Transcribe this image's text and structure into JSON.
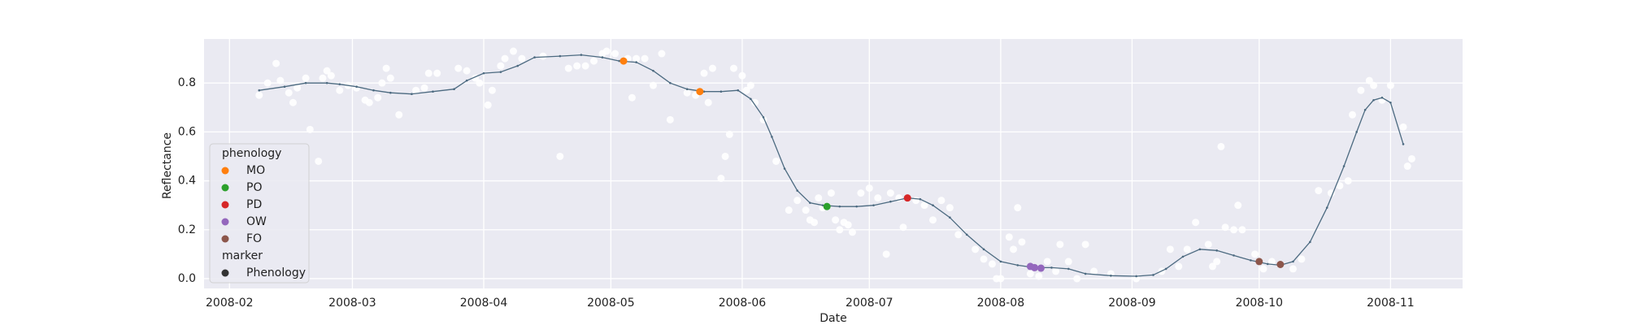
{
  "chart_data": {
    "type": "scatter",
    "xlabel": "Date",
    "ylabel": "Reflectance",
    "grid": true,
    "background": "#eaeaf2",
    "xlim": [
      26,
      323
    ],
    "xticks": [
      {
        "value": 32,
        "label": "2008-02"
      },
      {
        "value": 61,
        "label": "2008-03"
      },
      {
        "value": 92,
        "label": "2008-04"
      },
      {
        "value": 122,
        "label": "2008-05"
      },
      {
        "value": 153,
        "label": "2008-06"
      },
      {
        "value": 183,
        "label": "2008-07"
      },
      {
        "value": 214,
        "label": "2008-08"
      },
      {
        "value": 245,
        "label": "2008-09"
      },
      {
        "value": 275,
        "label": "2008-10"
      },
      {
        "value": 306,
        "label": "2008-11"
      }
    ],
    "ylim": [
      -0.04,
      0.98
    ],
    "yticks": [
      {
        "value": 0,
        "label": "0.0"
      },
      0.2,
      0.4,
      0.6,
      0.8
    ],
    "points": {
      "color": "#ffffff",
      "x": [
        39,
        41,
        43,
        44,
        46,
        47,
        48,
        50,
        51,
        53,
        54,
        55,
        56,
        58,
        60,
        62,
        64,
        65,
        67,
        68,
        69,
        70,
        72,
        76,
        78,
        79,
        81,
        86,
        88,
        90,
        91,
        93,
        94,
        96,
        97,
        99,
        101,
        106,
        110,
        112,
        114,
        116,
        118,
        120,
        121,
        123,
        126,
        127,
        128,
        130,
        132,
        134,
        136,
        140,
        142,
        144,
        145,
        146,
        148,
        149,
        150,
        151,
        153,
        154,
        155,
        156,
        158,
        161,
        164,
        166,
        168,
        169,
        170,
        171,
        172,
        174,
        175,
        176,
        177,
        178,
        179,
        181,
        183,
        185,
        187,
        188,
        190,
        191,
        194,
        196,
        198,
        200,
        202,
        204,
        208,
        210,
        212,
        213,
        214,
        216,
        217,
        218,
        219,
        221,
        223,
        225,
        227,
        228,
        230,
        232,
        234,
        236,
        240,
        246,
        252,
        254,
        256,
        258,
        260,
        263,
        264,
        265,
        266,
        267,
        269,
        270,
        271,
        274,
        276,
        278,
        283,
        285,
        289,
        292,
        294,
        296,
        297,
        299,
        301,
        302,
        304,
        306,
        309,
        310,
        311
      ],
      "values": [
        0.75,
        0.8,
        0.88,
        0.81,
        0.76,
        0.72,
        0.78,
        0.82,
        0.61,
        0.48,
        0.82,
        0.85,
        0.83,
        0.77,
        0.79,
        0.78,
        0.73,
        0.72,
        0.74,
        0.8,
        0.86,
        0.82,
        0.67,
        0.77,
        0.78,
        0.84,
        0.84,
        0.86,
        0.85,
        0.82,
        0.8,
        0.71,
        0.77,
        0.87,
        0.9,
        0.93,
        0.9,
        0.91,
        0.5,
        0.86,
        0.87,
        0.87,
        0.89,
        0.92,
        0.93,
        0.92,
        0.9,
        0.74,
        0.9,
        0.9,
        0.79,
        0.92,
        0.65,
        0.76,
        0.75,
        0.84,
        0.72,
        0.86,
        0.41,
        0.5,
        0.59,
        0.86,
        0.83,
        0.77,
        0.79,
        0.72,
        0.65,
        0.48,
        0.28,
        0.32,
        0.28,
        0.24,
        0.23,
        0.33,
        0.29,
        0.35,
        0.24,
        0.2,
        0.23,
        0.22,
        0.19,
        0.35,
        0.37,
        0.33,
        0.1,
        0.35,
        0.33,
        0.21,
        0.32,
        0.3,
        0.24,
        0.32,
        0.29,
        0.18,
        0.12,
        0.08,
        0.06,
        0.0,
        0.0,
        0.17,
        0.12,
        0.29,
        0.15,
        0.02,
        0.01,
        0.07,
        0.03,
        0.14,
        0.07,
        0.0,
        0.14,
        0.03,
        0.02,
        0.0,
        0.03,
        0.12,
        0.05,
        0.12,
        0.23,
        0.14,
        0.05,
        0.07,
        0.54,
        0.21,
        0.2,
        0.3,
        0.2,
        0.1,
        0.04,
        0.07,
        0.04,
        0.08,
        0.36,
        0.35,
        0.38,
        0.4,
        0.67,
        0.77,
        0.81,
        0.79,
        0.73,
        0.79,
        0.62,
        0.46,
        0.49
      ]
    },
    "curve": {
      "color": "#4c6a80",
      "x": [
        39,
        45,
        50,
        55,
        58,
        62,
        66,
        70,
        75,
        80,
        85,
        88,
        92,
        96,
        100,
        104,
        110,
        115,
        120,
        124,
        128,
        132,
        136,
        140,
        144,
        148,
        152,
        155,
        158,
        160,
        163,
        166,
        169,
        172,
        176,
        180,
        184,
        188,
        192,
        195,
        198,
        202,
        206,
        210,
        214,
        218,
        222,
        226,
        230,
        234,
        240,
        246,
        250,
        253,
        257,
        261,
        265,
        269,
        273,
        277,
        280,
        283,
        287,
        291,
        295,
        298,
        300,
        302,
        304,
        306,
        309
      ],
      "values": [
        0.77,
        0.785,
        0.8,
        0.8,
        0.795,
        0.785,
        0.77,
        0.76,
        0.755,
        0.765,
        0.775,
        0.81,
        0.84,
        0.845,
        0.87,
        0.905,
        0.91,
        0.915,
        0.905,
        0.89,
        0.885,
        0.85,
        0.8,
        0.775,
        0.765,
        0.765,
        0.77,
        0.735,
        0.66,
        0.58,
        0.45,
        0.36,
        0.31,
        0.3,
        0.295,
        0.295,
        0.3,
        0.315,
        0.33,
        0.325,
        0.3,
        0.25,
        0.18,
        0.12,
        0.07,
        0.055,
        0.045,
        0.045,
        0.04,
        0.02,
        0.012,
        0.01,
        0.015,
        0.04,
        0.09,
        0.12,
        0.115,
        0.095,
        0.075,
        0.06,
        0.055,
        0.07,
        0.15,
        0.29,
        0.46,
        0.6,
        0.69,
        0.73,
        0.74,
        0.72,
        0.55
      ]
    },
    "legend": {
      "title": "phenology",
      "subtitle": "marker",
      "loc": "lower left"
    },
    "series": [
      {
        "name": "MO",
        "color": "#ff7f0e",
        "x": [
          125,
          143
        ],
        "values": [
          0.89,
          0.765
        ]
      },
      {
        "name": "PO",
        "color": "#2ca02c",
        "x": [
          173
        ],
        "values": [
          0.295
        ]
      },
      {
        "name": "PD",
        "color": "#d62728",
        "x": [
          192
        ],
        "values": [
          0.33
        ]
      },
      {
        "name": "OW",
        "color": "#9467bd",
        "x": [
          221,
          222,
          223.5
        ],
        "values": [
          0.05,
          0.045,
          0.043
        ]
      },
      {
        "name": "FO",
        "color": "#8c564b",
        "x": [
          275,
          280
        ],
        "values": [
          0.07,
          0.058
        ]
      }
    ],
    "marker": {
      "name": "Phenology",
      "color": "#333333"
    }
  }
}
